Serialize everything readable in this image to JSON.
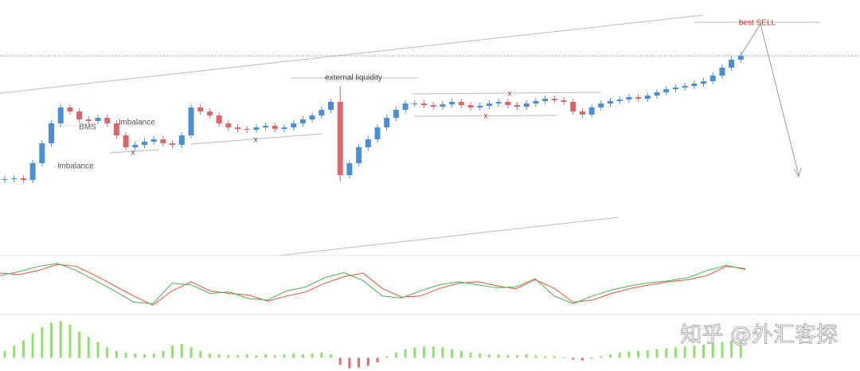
{
  "chart_data": [
    {
      "type": "candlestick",
      "open": [
        94,
        95,
        96,
        94,
        115,
        140,
        165,
        185,
        180,
        170,
        168,
        172,
        165,
        150,
        135,
        138,
        142,
        145,
        140,
        138,
        150,
        185,
        180,
        175,
        165,
        160,
        158,
        157,
        160,
        162,
        158,
        160,
        165,
        170,
        175,
        182,
        192,
        100,
        115,
        135,
        145,
        160,
        172,
        182,
        190,
        190,
        188,
        186,
        189,
        192,
        188,
        185,
        187,
        190,
        192,
        188,
        186,
        190,
        193,
        196,
        194,
        192,
        180,
        176,
        185,
        190,
        193,
        195,
        198,
        196,
        200,
        204,
        208,
        210,
        212,
        215,
        218,
        225,
        235,
        245
      ],
      "high": [
        99,
        100,
        100,
        119,
        144,
        169,
        189,
        189,
        184,
        174,
        176,
        176,
        169,
        154,
        142,
        146,
        149,
        149,
        144,
        154,
        189,
        189,
        184,
        179,
        169,
        164,
        162,
        164,
        166,
        166,
        164,
        169,
        174,
        179,
        186,
        196,
        212,
        119,
        139,
        149,
        164,
        176,
        186,
        194,
        194,
        194,
        192,
        193,
        196,
        196,
        192,
        191,
        194,
        196,
        196,
        192,
        194,
        197,
        200,
        200,
        198,
        196,
        184,
        189,
        194,
        197,
        199,
        202,
        202,
        204,
        208,
        212,
        214,
        216,
        219,
        222,
        229,
        239,
        249,
        254
      ],
      "low": [
        90,
        91,
        90,
        90,
        111,
        136,
        161,
        176,
        166,
        164,
        164,
        161,
        146,
        131,
        131,
        134,
        138,
        136,
        134,
        134,
        146,
        176,
        171,
        161,
        156,
        154,
        153,
        153,
        156,
        154,
        154,
        156,
        161,
        166,
        171,
        178,
        92,
        96,
        111,
        131,
        141,
        156,
        168,
        178,
        186,
        184,
        182,
        182,
        185,
        184,
        181,
        181,
        183,
        186,
        184,
        182,
        182,
        186,
        189,
        190,
        188,
        176,
        172,
        172,
        181,
        186,
        189,
        191,
        192,
        192,
        196,
        200,
        204,
        206,
        208,
        211,
        214,
        221,
        231,
        241
      ],
      "close": [
        95,
        96,
        94,
        115,
        140,
        165,
        185,
        180,
        170,
        168,
        172,
        165,
        150,
        135,
        138,
        142,
        145,
        140,
        138,
        150,
        185,
        180,
        175,
        165,
        160,
        158,
        157,
        160,
        162,
        158,
        160,
        165,
        170,
        175,
        182,
        192,
        100,
        115,
        135,
        145,
        160,
        172,
        182,
        190,
        190,
        188,
        186,
        189,
        192,
        188,
        185,
        187,
        190,
        192,
        188,
        186,
        190,
        193,
        196,
        194,
        192,
        180,
        176,
        185,
        190,
        193,
        195,
        198,
        196,
        200,
        204,
        208,
        210,
        212,
        215,
        218,
        225,
        235,
        245,
        250
      ],
      "up_color": "#4a8fd6",
      "down_color": "#d9686b",
      "ylim": [
        0,
        320
      ],
      "annotations": [
        "best SELL",
        "external liquidity",
        "BMS",
        "imbalance",
        "imbalance",
        "x",
        "x",
        "x",
        "x"
      ]
    },
    {
      "type": "line",
      "ylim": [
        0,
        100
      ],
      "series": [
        {
          "color": "#e0533c",
          "values": [
            75,
            72,
            80,
            92,
            88,
            70,
            50,
            30,
            12,
            40,
            58,
            40,
            35,
            32,
            20,
            30,
            38,
            55,
            68,
            75,
            45,
            28,
            30,
            45,
            55,
            58,
            50,
            44,
            62,
            45,
            18,
            22,
            35,
            45,
            52,
            58,
            62,
            70,
            88,
            84
          ]
        },
        {
          "color": "#4caf50",
          "values": [
            70,
            78,
            88,
            94,
            80,
            60,
            40,
            18,
            15,
            55,
            52,
            35,
            38,
            25,
            22,
            40,
            48,
            66,
            76,
            60,
            30,
            26,
            40,
            52,
            58,
            52,
            46,
            48,
            64,
            30,
            15,
            30,
            42,
            50,
            56,
            60,
            66,
            80,
            90,
            82
          ]
        }
      ]
    },
    {
      "type": "bar",
      "ylim": [
        -15,
        45
      ],
      "color": "#8ee26c",
      "negative_color": "#e0676a",
      "values": [
        8,
        14,
        20,
        28,
        35,
        40,
        42,
        38,
        30,
        24,
        18,
        12,
        8,
        6,
        5,
        4,
        5,
        8,
        14,
        16,
        12,
        8,
        5,
        4,
        3,
        3,
        4,
        3,
        4,
        3,
        4,
        5,
        4,
        5,
        6,
        4,
        -8,
        -12,
        -11,
        -9,
        -5,
        2,
        6,
        10,
        12,
        13,
        13,
        12,
        10,
        8,
        6,
        5,
        4,
        4,
        3,
        3,
        4,
        3,
        2,
        2,
        1,
        -2,
        -3,
        -1,
        2,
        4,
        6,
        7,
        8,
        9,
        10,
        11,
        12,
        13,
        14,
        15,
        17,
        18,
        20,
        20
      ]
    }
  ],
  "watermark": "知乎 @外汇客探"
}
